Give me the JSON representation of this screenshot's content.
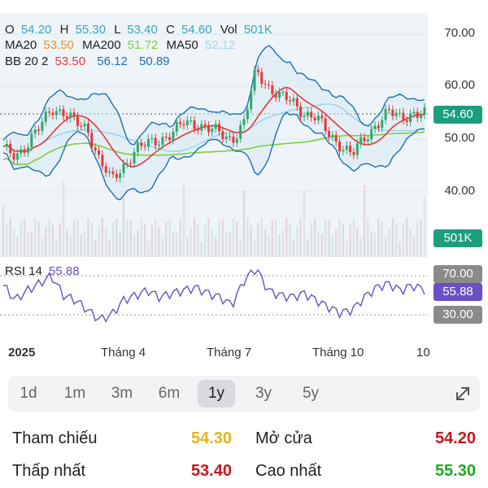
{
  "ohlc": {
    "o_label": "O",
    "o_val": "54.20",
    "h_label": "H",
    "h_val": "55.30",
    "l_label": "L",
    "l_val": "53.40",
    "c_label": "C",
    "c_val": "54.60",
    "vol_label": "Vol",
    "vol_val": "501K"
  },
  "ma": {
    "ma20_label": "MA20",
    "ma20_val": "53.50",
    "ma200_label": "MA200",
    "ma200_val": "51.72",
    "ma50_label": "MA50",
    "ma50_val": "52.12"
  },
  "bb": {
    "label": "BB 20 2",
    "v1": "53.50",
    "v2": "56.12",
    "v3": "50.89"
  },
  "price_axis": [
    "70.00",
    "60.00",
    "50.00",
    "40.00"
  ],
  "tags": {
    "price": "54.60",
    "volume": "501K",
    "rsi_upper": "70.00",
    "rsi_current": "55.88",
    "rsi_lower": "30.00"
  },
  "rsi": {
    "label": "RSI 14",
    "value": "55.88"
  },
  "x_axis": [
    "2025",
    "Tháng 4",
    "Tháng 7",
    "Tháng 10",
    "10"
  ],
  "ranges": [
    {
      "label": "1d",
      "active": false
    },
    {
      "label": "1m",
      "active": false
    },
    {
      "label": "3m",
      "active": false
    },
    {
      "label": "6m",
      "active": false
    },
    {
      "label": "1y",
      "active": true
    },
    {
      "label": "3y",
      "active": false
    },
    {
      "label": "5y",
      "active": false
    }
  ],
  "stats": {
    "ref_label": "Tham chiếu",
    "ref_val": "54.30",
    "open_label": "Mở cửa",
    "open_val": "54.20",
    "low_label": "Thấp nhất",
    "low_val": "53.40",
    "high_label": "Cao nhất",
    "high_val": "55.30"
  },
  "colors": {
    "o": "#3aa6b9",
    "h": "#3aa6b9",
    "l": "#3aa6b9",
    "c": "#3aa6b9",
    "vol": "#3aa6b9",
    "ma20": "#e8942a",
    "ma200": "#7ccf3c",
    "ma50": "#9fd5ee",
    "bb_mid": "#e5383b",
    "bb_up": "#1f6fb2",
    "bb_low": "#1f6fb2",
    "candle_up": "#2fa86b",
    "candle_down": "#e5383b",
    "price_tag": "#1a9e7d",
    "volume_tag": "#1a9e7d",
    "rsi_line": "#6a4fc7",
    "rsi_tag": "#6a4fc7",
    "rsi_band_tag": "#8a8a8a",
    "ref": "#e8b21f",
    "open": "#c8161d",
    "low": "#c8161d",
    "high": "#1fa81f"
  },
  "chart_data": {
    "type": "line",
    "series": [
      {
        "name": "C",
        "values": [
          48,
          47,
          49,
          52,
          56,
          55,
          53,
          52,
          46,
          42,
          45,
          48,
          49,
          50,
          51,
          53,
          53,
          52,
          51,
          50,
          53,
          63,
          60,
          58,
          57,
          55,
          54,
          51,
          49,
          47,
          50,
          53,
          55,
          54,
          55,
          54.6
        ]
      },
      {
        "name": "RSI 14",
        "values": [
          60,
          45,
          55,
          62,
          70,
          50,
          45,
          35,
          25,
          30,
          45,
          50,
          55,
          48,
          52,
          55,
          58,
          52,
          48,
          40,
          65,
          78,
          55,
          50,
          48,
          52,
          45,
          38,
          32,
          35,
          48,
          58,
          62,
          55,
          60,
          55.88
        ]
      }
    ],
    "ylim": [
      30,
      72
    ]
  }
}
